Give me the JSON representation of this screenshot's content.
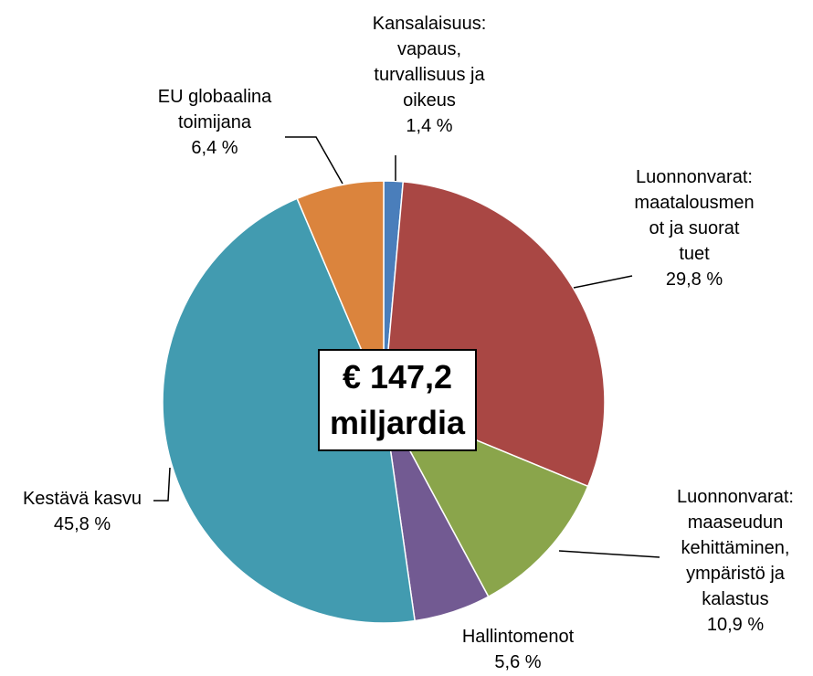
{
  "chart_data": {
    "type": "pie",
    "categories": [
      "Kansalaisuus:\nvapaus,\nturvallisuus ja\noikeus",
      "Luonnonvarat:\nmaatalousmen\not ja suorat tuet",
      "Luonnonvarat:\nmaaseudun\nkehittäminen,\nympäristö ja\nkalastus",
      "Hallintomenot",
      "Kestävä kasvu",
      "EU globaalina\ntoimijana"
    ],
    "values": [
      1.4,
      29.8,
      10.9,
      5.6,
      45.8,
      6.4
    ],
    "value_labels": [
      "1,4 %",
      "29,8 %",
      "10,9 %",
      "5,6 %",
      "45,8 %",
      "6,4 %"
    ],
    "colors": [
      "#4a7ebb",
      "#a94744",
      "#8aa54b",
      "#725a92",
      "#429bb0",
      "#db843d"
    ],
    "center_label": "€ 147,2\nmiljardia"
  }
}
